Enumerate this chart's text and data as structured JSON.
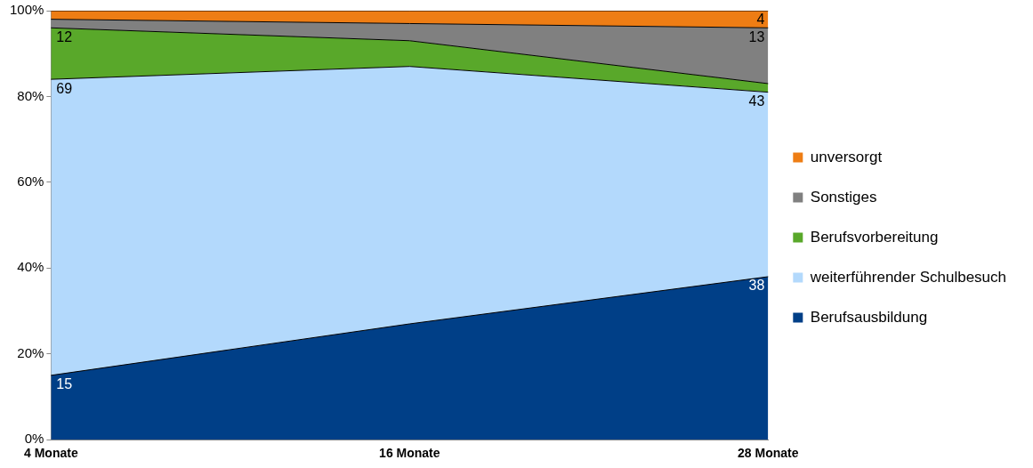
{
  "chart_data": {
    "type": "area",
    "stacked": true,
    "categories": [
      "4 Monate",
      "16 Monate",
      "28 Monate"
    ],
    "series": [
      {
        "name": "Berufsausbildung",
        "color": "#003f87",
        "values": [
          15,
          27,
          38
        ],
        "value_labels": [
          "15",
          null,
          "38"
        ]
      },
      {
        "name": "weiterführender Schulbesuch",
        "color": "#b3d9fc",
        "values": [
          69,
          60,
          43
        ],
        "value_labels": [
          "69",
          null,
          "43"
        ]
      },
      {
        "name": "Berufsvorbereitung",
        "color": "#59a82a",
        "values": [
          12,
          6,
          2
        ],
        "value_labels": [
          "12",
          null,
          null
        ]
      },
      {
        "name": "Sonstiges",
        "color": "#808080",
        "values": [
          2,
          4,
          13
        ],
        "value_labels": [
          null,
          null,
          "13"
        ]
      },
      {
        "name": "unversorgt",
        "color": "#ee7d14",
        "values": [
          2,
          3,
          4
        ],
        "value_labels": [
          null,
          null,
          "4"
        ]
      }
    ],
    "ylim": [
      0,
      100
    ],
    "yticks": [
      {
        "value": 0,
        "label": "0%"
      },
      {
        "value": 20,
        "label": "20%"
      },
      {
        "value": 40,
        "label": "40%"
      },
      {
        "value": 60,
        "label": "60%"
      },
      {
        "value": 80,
        "label": "80%"
      },
      {
        "value": 100,
        "label": "100%"
      }
    ],
    "grid": false,
    "legend": "right"
  }
}
